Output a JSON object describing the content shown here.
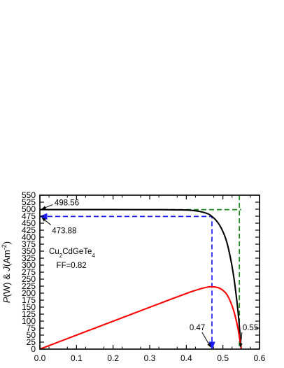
{
  "chart_data": {
    "type": "line",
    "title": "",
    "xlabel": "",
    "ylabel_parts": [
      "P",
      "(W)",
      " & ",
      "J",
      "(Am",
      "-2",
      ")"
    ],
    "xlim": [
      0.0,
      0.6
    ],
    "ylim": [
      0,
      550
    ],
    "x_ticks": [
      "0.0",
      "0.1",
      "0.2",
      "0.3",
      "0.4",
      "0.5",
      "0.6"
    ],
    "y_ticks": [
      "0",
      "25",
      "50",
      "75",
      "100",
      "125",
      "150",
      "175",
      "200",
      "225",
      "250",
      "275",
      "300",
      "325",
      "350",
      "375",
      "400",
      "425",
      "450",
      "475",
      "500",
      "525",
      "550"
    ],
    "series": [
      {
        "color": "#000000",
        "x": [
          0.0,
          0.1,
          0.2,
          0.3,
          0.35,
          0.4,
          0.42,
          0.44,
          0.46,
          0.47,
          0.48,
          0.49,
          0.5,
          0.51,
          0.52,
          0.53,
          0.54,
          0.545,
          0.55
        ],
        "y": [
          498.56,
          498.56,
          498.5,
          498.3,
          498.0,
          497.0,
          495.0,
          491.0,
          483.0,
          473.88,
          462.0,
          445.0,
          420.0,
          385.0,
          330.0,
          255.0,
          150.0,
          80.0,
          0.0
        ]
      },
      {
        "color": "#ff0000",
        "x": [
          0.0,
          0.1,
          0.2,
          0.3,
          0.35,
          0.4,
          0.42,
          0.44,
          0.46,
          0.47,
          0.48,
          0.49,
          0.5,
          0.51,
          0.52,
          0.53,
          0.54,
          0.545,
          0.55
        ],
        "y": [
          0.0,
          49.9,
          99.7,
          149.5,
          174.3,
          198.8,
          207.9,
          216.0,
          222.2,
          222.7,
          221.8,
          218.1,
          210.0,
          196.4,
          171.6,
          135.2,
          81.0,
          43.6,
          0.0
        ]
      }
    ],
    "guides": [
      {
        "color": "#1a1aff",
        "points": [
          [
            0.0,
            473.88
          ],
          [
            0.47,
            473.88
          ],
          [
            0.47,
            0.0
          ]
        ],
        "arrow_ends": true
      },
      {
        "color": "#1a8a1a",
        "points": [
          [
            0.0,
            498.56
          ],
          [
            0.55,
            498.56
          ]
        ],
        "arrow_ends": false
      },
      {
        "color": "#1a8a1a",
        "points": [
          [
            0.545,
            550.0
          ],
          [
            0.545,
            0.0
          ]
        ],
        "arrow_ends": false
      }
    ],
    "annotations": {
      "jsc": {
        "text": "498.56",
        "x": 0.0,
        "y": 498.56
      },
      "jmp": {
        "text": "473.88",
        "x": 0.0,
        "y": 473.88
      },
      "vmp": {
        "text": "0.47",
        "x": 0.47,
        "y": 0.0
      },
      "voc": {
        "text": "0.55",
        "x": 0.55,
        "y": 0.0
      }
    },
    "material": {
      "parts": [
        "Cu",
        "2",
        "CdGeTe",
        "4"
      ]
    },
    "fill_factor": "FF=0.82",
    "grid": false,
    "legend": "none"
  }
}
